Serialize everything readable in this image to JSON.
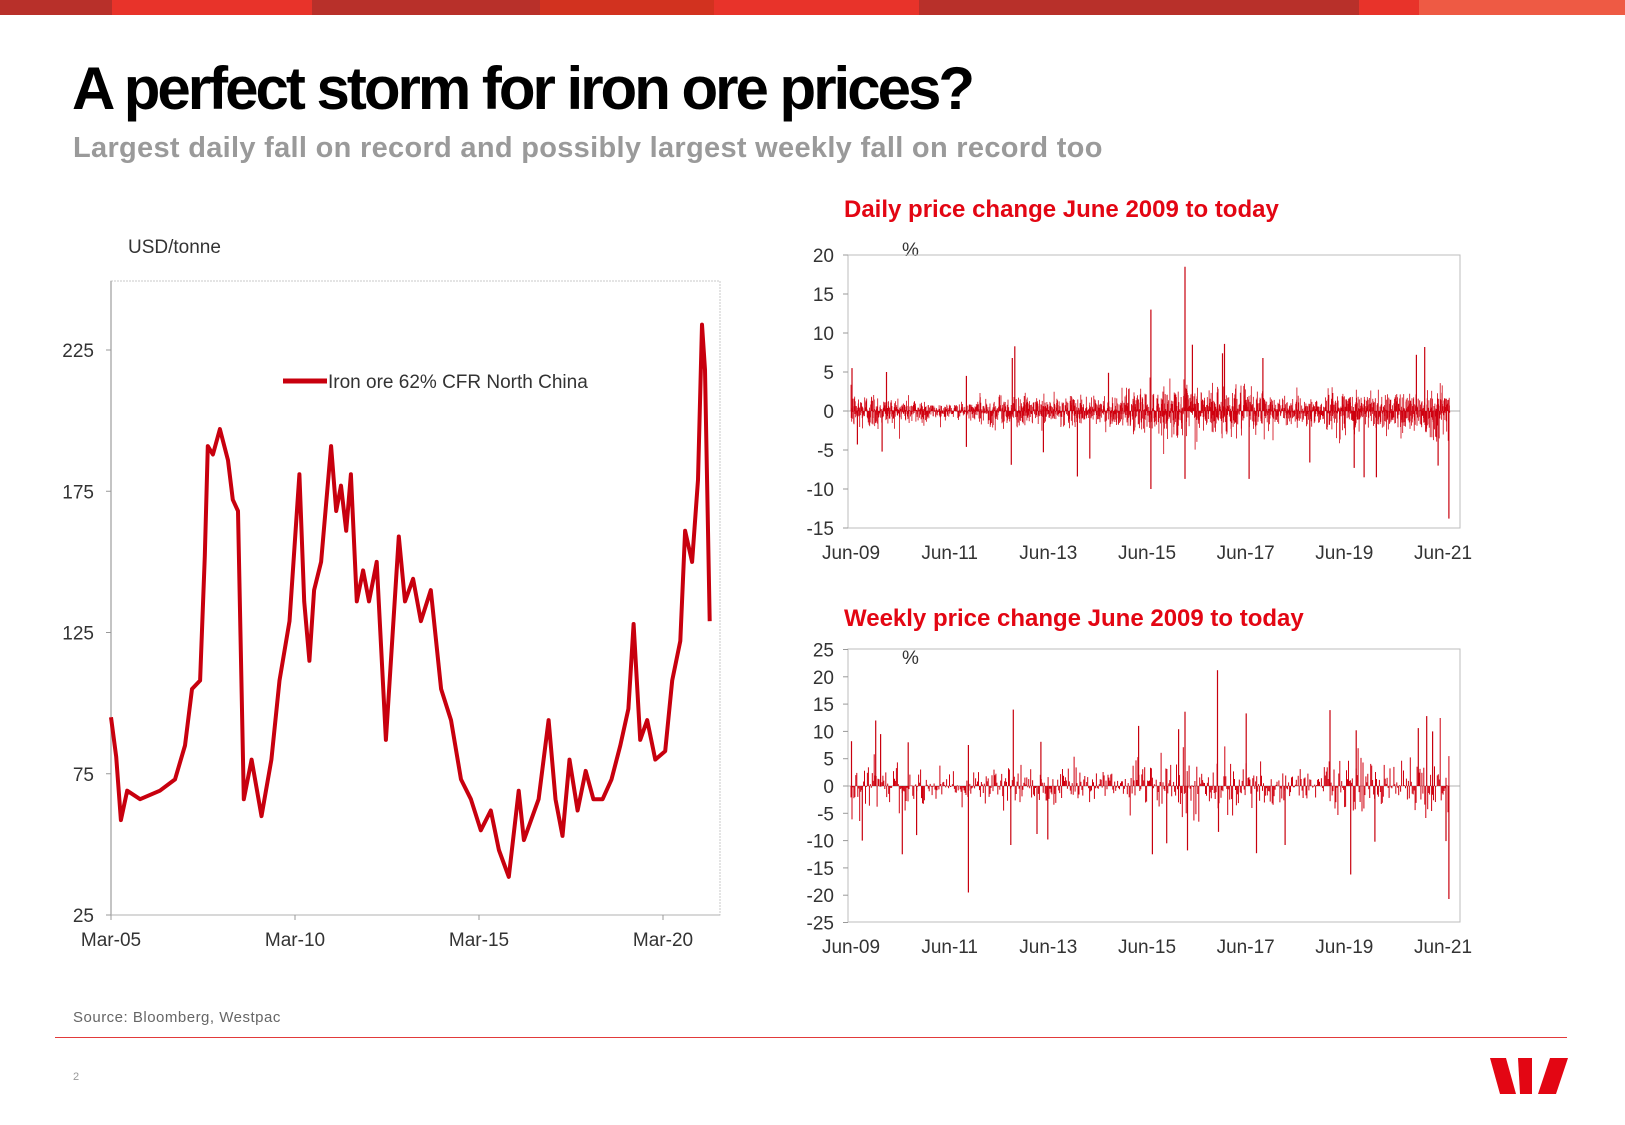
{
  "slide": {
    "title": "A perfect storm for iron ore prices?",
    "subtitle": "Largest daily fall on record and possibly largest weekly fall on record too",
    "source": "Source:  Bloomberg,  Westpac",
    "page_number": "2",
    "brand": "Westpac",
    "colors": {
      "accent_red": "#e30613",
      "series_red": "#c8000e",
      "subtitle_grey": "#9a9a9a",
      "topbar": [
        "#b8302a",
        "#e8332a",
        "#b8302a",
        "#d2321f",
        "#e8332a",
        "#b8302a",
        "#e8332a",
        "#ee5a44"
      ]
    }
  },
  "chart_data": [
    {
      "id": "iron-ore-price",
      "type": "line",
      "title": "",
      "ylabel": "USD/tonne",
      "xlabel": "",
      "ylim": [
        25,
        250
      ],
      "yticks": [
        25,
        75,
        125,
        175,
        225
      ],
      "xlim": [
        2005.17,
        2021.6
      ],
      "xticks": [
        {
          "x": 2005.17,
          "label": "Mar-05"
        },
        {
          "x": 2010.17,
          "label": "Mar-10"
        },
        {
          "x": 2015.17,
          "label": "Mar-15"
        },
        {
          "x": 2020.17,
          "label": "Mar-20"
        }
      ],
      "legend": {
        "position": "top-center",
        "entries": [
          "Iron ore 62% CFR North China"
        ]
      },
      "grid": false,
      "series": [
        {
          "name": "Iron ore 62% CFR North China",
          "x": [
            2005.17,
            2005.31,
            2005.44,
            2005.61,
            2005.96,
            2006.5,
            2006.91,
            2007.18,
            2007.37,
            2007.59,
            2007.72,
            2007.8,
            2007.94,
            2008.13,
            2008.35,
            2008.48,
            2008.62,
            2008.78,
            2008.99,
            2009.26,
            2009.53,
            2009.75,
            2010.02,
            2010.29,
            2010.42,
            2010.56,
            2010.69,
            2010.88,
            2011.15,
            2011.29,
            2011.42,
            2011.56,
            2011.69,
            2011.85,
            2012.02,
            2012.18,
            2012.39,
            2012.64,
            2012.99,
            2013.16,
            2013.38,
            2013.59,
            2013.86,
            2014.14,
            2014.41,
            2014.68,
            2014.95,
            2015.22,
            2015.49,
            2015.71,
            2015.98,
            2016.25,
            2016.39,
            2016.79,
            2017.06,
            2017.25,
            2017.44,
            2017.63,
            2017.85,
            2018.07,
            2018.28,
            2018.53,
            2018.77,
            2019.01,
            2019.23,
            2019.37,
            2019.55,
            2019.74,
            2019.96,
            2020.23,
            2020.42,
            2020.64,
            2020.77,
            2020.96,
            2021.12,
            2021.23,
            2021.31,
            2021.44
          ],
          "values": [
            95,
            81,
            58.6,
            69,
            66,
            69,
            73,
            85,
            105,
            108,
            152,
            191,
            188,
            197,
            186,
            172,
            168,
            66,
            80,
            60,
            80,
            108,
            129,
            181,
            136,
            115,
            140,
            150,
            191,
            168,
            177,
            161,
            181,
            136,
            147,
            136,
            150,
            87,
            159,
            136,
            144,
            129,
            140,
            105,
            94,
            73,
            66,
            55,
            62,
            48,
            38.5,
            69,
            51.5,
            66,
            94,
            66,
            53,
            80,
            62,
            76,
            66,
            66,
            73,
            85,
            98,
            128,
            87,
            94,
            80,
            83,
            108,
            122,
            161,
            150,
            179,
            234,
            218,
            129
          ]
        }
      ]
    },
    {
      "id": "daily-change",
      "type": "bar",
      "title": "Daily price change June 2009 to today",
      "ylabel": "%",
      "ylim": [
        -15,
        20
      ],
      "yticks": [
        20,
        15,
        10,
        5,
        0,
        -5,
        -10,
        -15
      ],
      "xlim": [
        2009.42,
        2021.6
      ],
      "xticks": [
        {
          "x": 2009.42,
          "label": "Jun-09"
        },
        {
          "x": 2011.42,
          "label": "Jun-11"
        },
        {
          "x": 2013.42,
          "label": "Jun-13"
        },
        {
          "x": 2015.42,
          "label": "Jun-15"
        },
        {
          "x": 2017.42,
          "label": "Jun-17"
        },
        {
          "x": 2019.42,
          "label": "Jun-19"
        },
        {
          "x": 2021.42,
          "label": "Jun-21"
        }
      ],
      "grid": false,
      "typical_amplitude_by_year": {
        "2009": 2.2,
        "2010": 1.6,
        "2011": 0.9,
        "2012": 1.8,
        "2013": 1.6,
        "2014": 1.8,
        "2015": 2.6,
        "2016": 3.0,
        "2017": 2.6,
        "2018": 1.6,
        "2019": 2.4,
        "2020": 2.4,
        "2021": 3.0
      },
      "notable_points": [
        {
          "x": 2009.44,
          "value": 5.5
        },
        {
          "x": 2009.55,
          "value": -4.3
        },
        {
          "x": 2010.14,
          "value": 5.0
        },
        {
          "x": 2010.05,
          "value": -5.2
        },
        {
          "x": 2011.76,
          "value": 4.5
        },
        {
          "x": 2011.76,
          "value": -4.6
        },
        {
          "x": 2012.69,
          "value": 6.8
        },
        {
          "x": 2012.74,
          "value": 8.3
        },
        {
          "x": 2012.67,
          "value": -6.9
        },
        {
          "x": 2013.32,
          "value": -5.3
        },
        {
          "x": 2014.01,
          "value": -8.4
        },
        {
          "x": 2014.26,
          "value": -6.1
        },
        {
          "x": 2014.64,
          "value": 4.9
        },
        {
          "x": 2015.5,
          "value": 13.0
        },
        {
          "x": 2015.5,
          "value": -10.0
        },
        {
          "x": 2016.19,
          "value": 18.5
        },
        {
          "x": 2016.19,
          "value": -8.7
        },
        {
          "x": 2016.34,
          "value": 8.5
        },
        {
          "x": 2016.95,
          "value": 7.4
        },
        {
          "x": 2016.99,
          "value": 8.6
        },
        {
          "x": 2017.49,
          "value": -8.7
        },
        {
          "x": 2017.77,
          "value": 6.8
        },
        {
          "x": 2018.72,
          "value": -6.6
        },
        {
          "x": 2019.62,
          "value": -7.3
        },
        {
          "x": 2019.82,
          "value": -8.5
        },
        {
          "x": 2020.07,
          "value": -8.5
        },
        {
          "x": 2020.88,
          "value": 7.2
        },
        {
          "x": 2021.05,
          "value": 8.2
        },
        {
          "x": 2021.32,
          "value": -7.0
        },
        {
          "x": 2021.54,
          "value": -13.8
        }
      ]
    },
    {
      "id": "weekly-change",
      "type": "bar",
      "title": "Weekly price change June 2009 to today",
      "ylabel": "%",
      "ylim": [
        -25,
        25
      ],
      "yticks": [
        25,
        20,
        15,
        10,
        5,
        0,
        -5,
        -10,
        -15,
        -20,
        -25
      ],
      "xlim": [
        2009.42,
        2021.6
      ],
      "xticks": [
        {
          "x": 2009.42,
          "label": "Jun-09"
        },
        {
          "x": 2011.42,
          "label": "Jun-11"
        },
        {
          "x": 2013.42,
          "label": "Jun-13"
        },
        {
          "x": 2015.42,
          "label": "Jun-15"
        },
        {
          "x": 2017.42,
          "label": "Jun-17"
        },
        {
          "x": 2019.42,
          "label": "Jun-19"
        },
        {
          "x": 2021.42,
          "label": "Jun-21"
        }
      ],
      "grid": false,
      "typical_amplitude_by_year": {
        "2009": 5.0,
        "2010": 4.0,
        "2011": 2.5,
        "2012": 3.5,
        "2013": 3.0,
        "2014": 3.0,
        "2015": 4.5,
        "2016": 5.5,
        "2017": 4.5,
        "2018": 3.0,
        "2019": 5.0,
        "2020": 4.5,
        "2021": 6.0
      },
      "notable_points": [
        {
          "x": 2009.43,
          "value": 8.2
        },
        {
          "x": 2009.65,
          "value": -10.0
        },
        {
          "x": 2009.92,
          "value": 12.0
        },
        {
          "x": 2010.02,
          "value": 9.5
        },
        {
          "x": 2010.46,
          "value": -12.5
        },
        {
          "x": 2010.58,
          "value": 8.0
        },
        {
          "x": 2010.75,
          "value": -9.0
        },
        {
          "x": 2011.8,
          "value": 7.5
        },
        {
          "x": 2011.8,
          "value": -19.5
        },
        {
          "x": 2012.71,
          "value": 14.0
        },
        {
          "x": 2012.66,
          "value": -10.8
        },
        {
          "x": 2013.19,
          "value": -8.8
        },
        {
          "x": 2013.41,
          "value": -9.8
        },
        {
          "x": 2013.27,
          "value": 8.1
        },
        {
          "x": 2015.25,
          "value": 11.0
        },
        {
          "x": 2015.53,
          "value": -12.5
        },
        {
          "x": 2015.82,
          "value": -10.5
        },
        {
          "x": 2016.06,
          "value": 10.4
        },
        {
          "x": 2016.19,
          "value": 13.6
        },
        {
          "x": 2016.24,
          "value": -11.8
        },
        {
          "x": 2016.85,
          "value": 21.2
        },
        {
          "x": 2016.87,
          "value": -8.4
        },
        {
          "x": 2017.43,
          "value": 13.3
        },
        {
          "x": 2017.64,
          "value": -12.3
        },
        {
          "x": 2018.22,
          "value": -10.8
        },
        {
          "x": 2019.13,
          "value": 13.9
        },
        {
          "x": 2019.55,
          "value": -16.2
        },
        {
          "x": 2019.66,
          "value": 10.2
        },
        {
          "x": 2020.04,
          "value": -10.2
        },
        {
          "x": 2020.92,
          "value": 10.6
        },
        {
          "x": 2021.09,
          "value": 12.8
        },
        {
          "x": 2021.21,
          "value": 10.0
        },
        {
          "x": 2021.48,
          "value": -10.1
        },
        {
          "x": 2021.54,
          "value": -20.7
        }
      ]
    }
  ]
}
